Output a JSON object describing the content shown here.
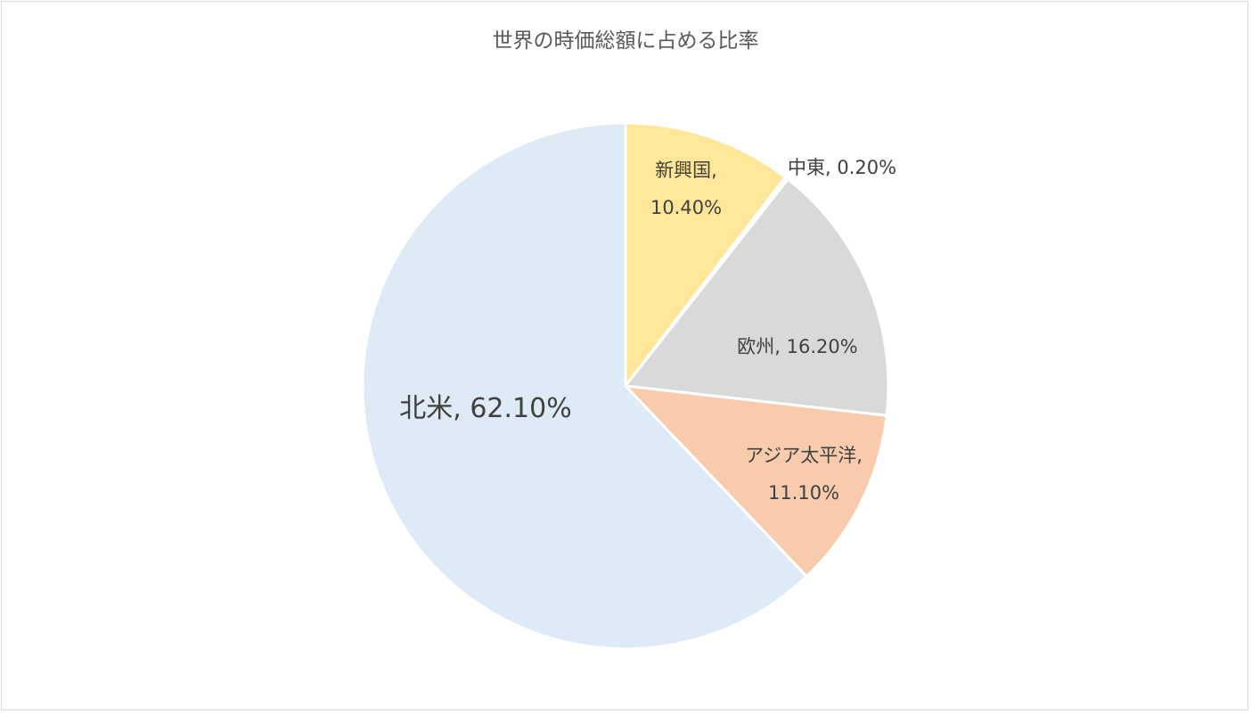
{
  "chart_data": {
    "type": "pie",
    "title": "世界の時価総額に占める比率",
    "slices": [
      {
        "label": "新興国",
        "value": 10.4,
        "text": "新興国,",
        "text2": "10.40%",
        "color": "#ffe699"
      },
      {
        "label": "中東",
        "value": 0.2,
        "text": "中東, 0.20%",
        "text2": "",
        "color": "#fff2cc"
      },
      {
        "label": "欧州",
        "value": 16.2,
        "text": "欧州, 16.20%",
        "text2": "",
        "color": "#d9d9d9"
      },
      {
        "label": "アジア太平洋",
        "value": 11.1,
        "text": "アジア太平洋,",
        "text2": "11.10%",
        "color": "#f8cbad"
      },
      {
        "label": "北米",
        "value": 62.1,
        "text": "北米, 62.10%",
        "text2": "",
        "color": "#deeaf6"
      }
    ],
    "start_angle": "12 o'clock",
    "direction": "clockwise",
    "legend": "none"
  }
}
